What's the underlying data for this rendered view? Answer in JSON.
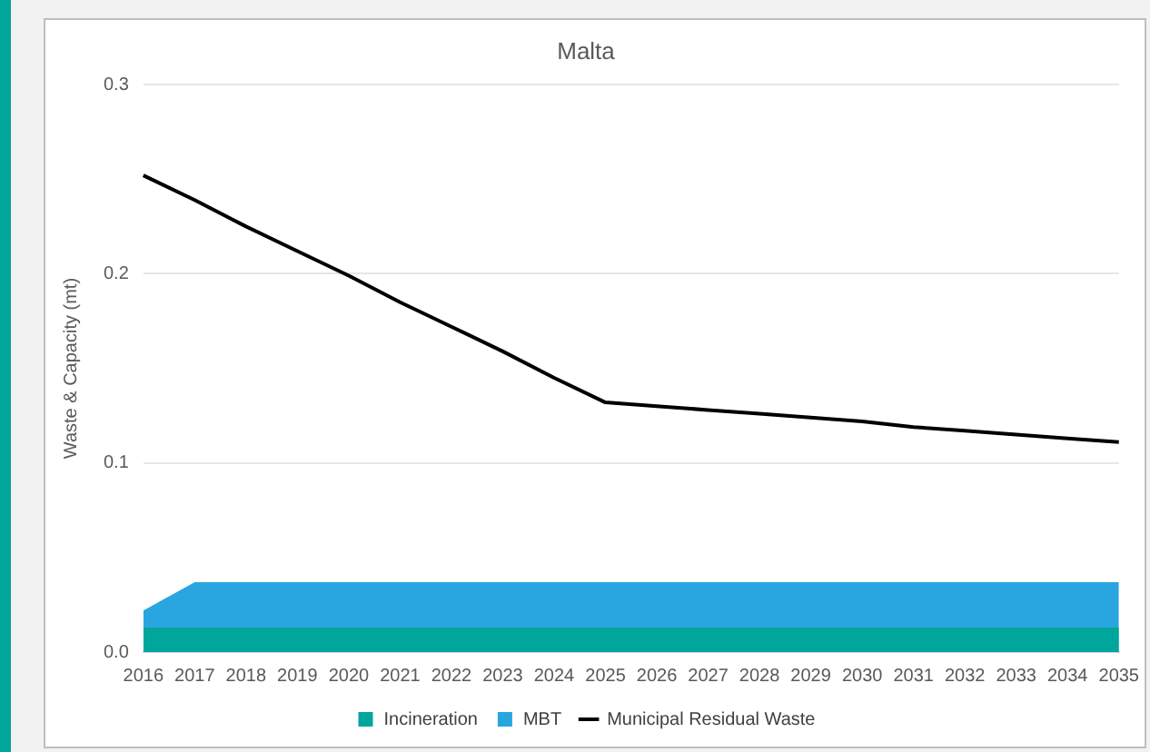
{
  "chart_data": {
    "type": "area",
    "title": "Malta",
    "ylabel": "Waste & Capacity (mt)",
    "categories": [
      "2016",
      "2017",
      "2018",
      "2019",
      "2020",
      "2021",
      "2022",
      "2023",
      "2024",
      "2025",
      "2026",
      "2027",
      "2028",
      "2029",
      "2030",
      "2031",
      "2032",
      "2033",
      "2034",
      "2035"
    ],
    "stacked": true,
    "series": [
      {
        "name": "Incineration",
        "color": "#00a59b",
        "values": [
          0.013,
          0.013,
          0.013,
          0.013,
          0.013,
          0.013,
          0.013,
          0.013,
          0.013,
          0.013,
          0.013,
          0.013,
          0.013,
          0.013,
          0.013,
          0.013,
          0.013,
          0.013,
          0.013,
          0.013
        ]
      },
      {
        "name": "MBT",
        "color": "#29a6e0",
        "values": [
          0.009,
          0.024,
          0.024,
          0.024,
          0.024,
          0.024,
          0.024,
          0.024,
          0.024,
          0.024,
          0.024,
          0.024,
          0.024,
          0.024,
          0.024,
          0.024,
          0.024,
          0.024,
          0.024,
          0.024
        ]
      },
      {
        "name": "Municipal Residual Waste",
        "type": "line",
        "color": "#000000",
        "values": [
          0.252,
          0.239,
          0.225,
          0.212,
          0.199,
          0.185,
          0.172,
          0.159,
          0.145,
          0.132,
          0.13,
          0.128,
          0.126,
          0.124,
          0.122,
          0.119,
          0.117,
          0.115,
          0.113,
          0.111
        ]
      }
    ],
    "ylim": [
      0,
      0.3
    ],
    "yticks": [
      {
        "value": 0,
        "label": "0.0"
      },
      {
        "value": 0.1,
        "label": "0.1"
      },
      {
        "value": 0.2,
        "label": "0.2"
      },
      {
        "value": 0.3,
        "label": "0.3"
      }
    ],
    "grid": "y",
    "legend": "bottom",
    "marker": "none",
    "line_style": "solid"
  }
}
